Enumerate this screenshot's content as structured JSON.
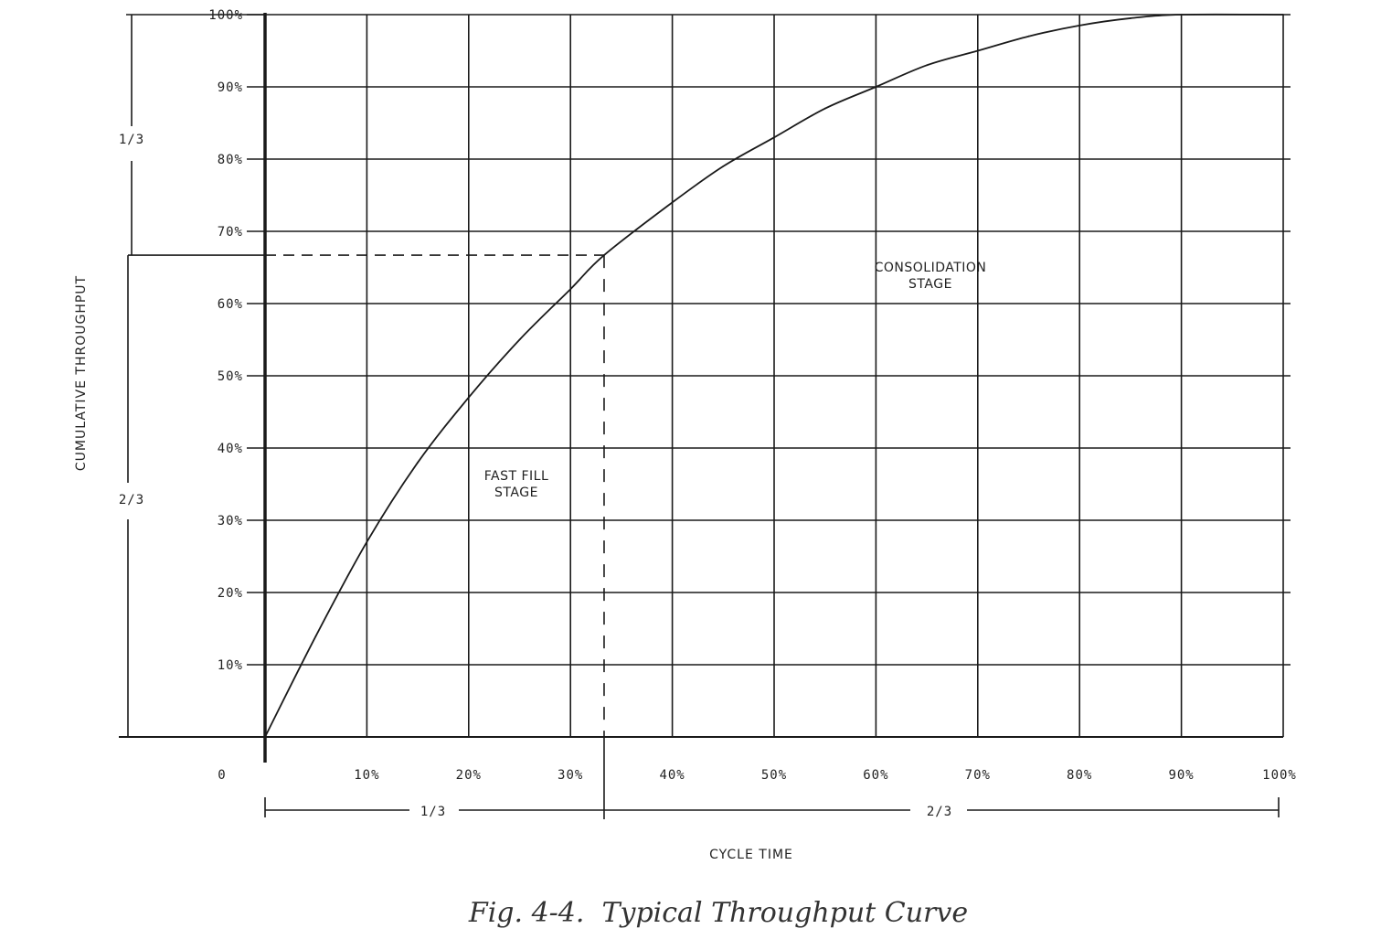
{
  "chart_data": {
    "type": "line",
    "title": "",
    "caption": "Fig. 4-4.  Typical Throughput Curve",
    "xlabel": "CYCLE TIME",
    "ylabel": "CUMULATIVE THROUGHPUT",
    "xlim": [
      0,
      100
    ],
    "ylim": [
      0,
      100
    ],
    "grid": true,
    "x_tick_labels": [
      "0",
      "10%",
      "20%",
      "30%",
      "40%",
      "50%",
      "60%",
      "70%",
      "80%",
      "90%",
      "100%"
    ],
    "y_tick_labels": [
      "10%",
      "20%",
      "30%",
      "40%",
      "50%",
      "60%",
      "70%",
      "80%",
      "90%",
      "100%"
    ],
    "series": [
      {
        "x": [
          0,
          5,
          10,
          15,
          20,
          25,
          30,
          33.3,
          40,
          45,
          50,
          55,
          60,
          65,
          70,
          75,
          80,
          85,
          90,
          100
        ],
        "y": [
          0,
          14,
          27,
          38,
          47,
          55,
          62,
          66.7,
          74,
          79,
          83,
          87,
          90,
          93,
          95,
          97,
          98.5,
          99.5,
          100,
          100
        ]
      }
    ],
    "reference_point": {
      "x": 33.3,
      "y": 66.7
    },
    "annotations": {
      "fast_fill_line1": "FAST FILL",
      "fast_fill_line2": "STAGE",
      "consolidation_line1": "CONSOLIDATION",
      "consolidation_line2": "STAGE"
    },
    "x_brackets": {
      "first": "1/3",
      "second": "2/3"
    },
    "y_brackets": {
      "upper": "1/3",
      "lower": "2/3"
    }
  }
}
